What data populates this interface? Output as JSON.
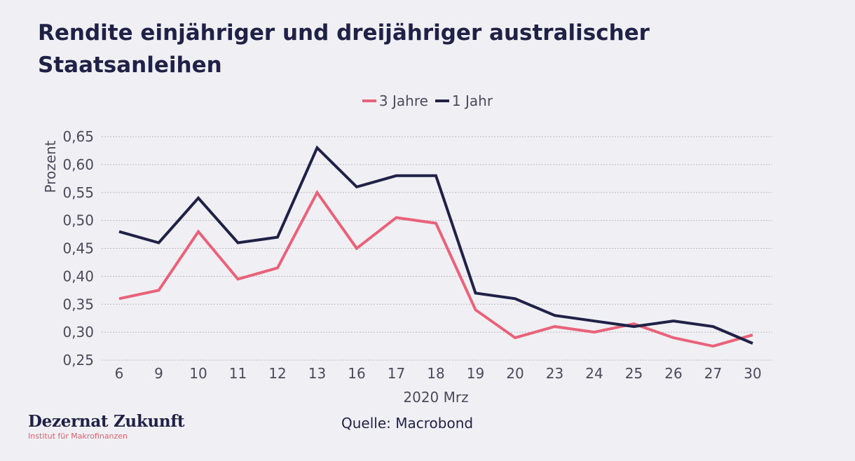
{
  "title": "Rendite einjähriger und dreijähriger australischer Staatsanleihen",
  "source": "Quelle: Macrobond",
  "brand": {
    "name": "Dezernat Zukunft",
    "subtitle": "Institut für Makrofinanzen"
  },
  "chart_data": {
    "type": "line",
    "title": "Rendite einjähriger und dreijähriger australischer Staatsanleihen",
    "xlabel": "2020 Mrz",
    "ylabel": "Prozent",
    "categories": [
      "6",
      "9",
      "10",
      "11",
      "12",
      "13",
      "16",
      "17",
      "18",
      "19",
      "20",
      "23",
      "24",
      "25",
      "26",
      "27",
      "30"
    ],
    "ylim": [
      0.25,
      0.65
    ],
    "yticks": [
      "0,25",
      "0,30",
      "0,35",
      "0,40",
      "0,45",
      "0,50",
      "0,55",
      "0,60",
      "0,65"
    ],
    "grid": true,
    "legend_position": "top-center",
    "series": [
      {
        "name": "3 Jahre",
        "color": "#e8637a",
        "values": [
          0.36,
          0.375,
          0.48,
          0.395,
          0.415,
          0.55,
          0.45,
          0.505,
          0.495,
          0.34,
          0.29,
          0.31,
          0.3,
          0.315,
          0.29,
          0.275,
          0.295
        ]
      },
      {
        "name": "1 Jahr",
        "color": "#1f2147",
        "values": [
          0.48,
          0.46,
          0.54,
          0.46,
          0.47,
          0.63,
          0.56,
          0.58,
          0.58,
          0.37,
          0.36,
          0.33,
          0.32,
          0.31,
          0.32,
          0.31,
          0.28
        ]
      }
    ]
  }
}
